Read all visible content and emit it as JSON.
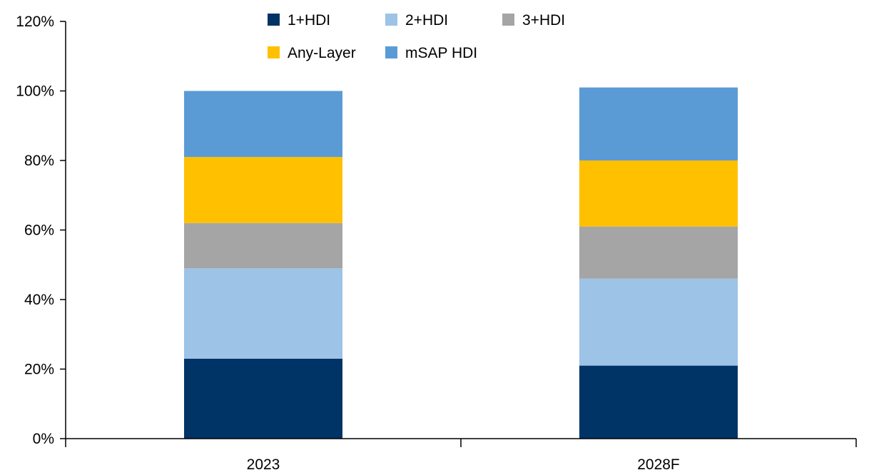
{
  "chart_data": {
    "type": "bar",
    "stacked": true,
    "title": "",
    "xlabel": "",
    "ylabel": "",
    "categories": [
      "2023",
      "2028F"
    ],
    "series": [
      {
        "name": "1+HDI",
        "color": "#003366",
        "values": [
          23,
          21
        ]
      },
      {
        "name": "2+HDI",
        "color": "#9DC3E6",
        "values": [
          26,
          25
        ]
      },
      {
        "name": "3+HDI",
        "color": "#A5A5A5",
        "values": [
          13,
          15
        ]
      },
      {
        "name": "Any-Layer",
        "color": "#FFC000",
        "values": [
          19,
          19
        ]
      },
      {
        "name": "mSAP HDI",
        "color": "#5B9BD5",
        "values": [
          19,
          21
        ]
      }
    ],
    "ylim": [
      0,
      120
    ],
    "yticks": [
      0,
      20,
      40,
      60,
      80,
      100,
      120
    ],
    "ytick_labels": [
      "0%",
      "20%",
      "40%",
      "60%",
      "80%",
      "100%",
      "120%"
    ],
    "grid": false,
    "legend_position": "top"
  }
}
